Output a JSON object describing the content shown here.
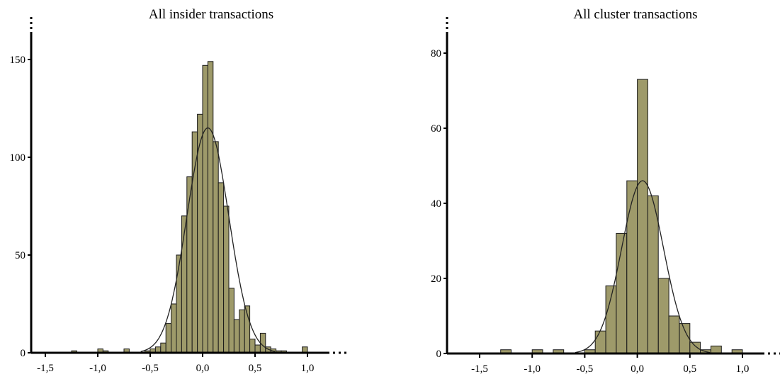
{
  "style": {
    "bar_fill": "#9e9a6a",
    "bar_stroke": "#1a1a1a",
    "axis_color": "#000000",
    "curve_color": "#222222"
  },
  "chart_data": [
    {
      "type": "bar",
      "title": "All insider transactions",
      "xlabel": "",
      "ylabel": "",
      "xlim": [
        -1.65,
        1.2
      ],
      "ylim": [
        0,
        165
      ],
      "x_ticks": [
        -1.5,
        -1.0,
        -0.5,
        0.0,
        0.5,
        1.0
      ],
      "x_tick_labels": [
        "-1,5",
        "-1,0",
        "-0,5",
        "0,0",
        "0,5",
        "1,0"
      ],
      "y_ticks": [
        0,
        50,
        100,
        150
      ],
      "y_tick_labels": [
        "0",
        "50",
        "100",
        "150"
      ],
      "bin_width": 0.05,
      "bins": [
        {
          "x0": -1.25,
          "count": 1
        },
        {
          "x0": -1.0,
          "count": 2
        },
        {
          "x0": -0.95,
          "count": 1
        },
        {
          "x0": -0.75,
          "count": 2
        },
        {
          "x0": -0.55,
          "count": 1
        },
        {
          "x0": -0.5,
          "count": 2
        },
        {
          "x0": -0.45,
          "count": 3
        },
        {
          "x0": -0.4,
          "count": 5
        },
        {
          "x0": -0.35,
          "count": 15
        },
        {
          "x0": -0.3,
          "count": 25
        },
        {
          "x0": -0.25,
          "count": 50
        },
        {
          "x0": -0.2,
          "count": 70
        },
        {
          "x0": -0.15,
          "count": 90
        },
        {
          "x0": -0.1,
          "count": 113
        },
        {
          "x0": -0.05,
          "count": 122
        },
        {
          "x0": 0.0,
          "count": 147
        },
        {
          "x0": 0.05,
          "count": 149
        },
        {
          "x0": 0.1,
          "count": 108
        },
        {
          "x0": 0.15,
          "count": 87
        },
        {
          "x0": 0.2,
          "count": 75
        },
        {
          "x0": 0.25,
          "count": 33
        },
        {
          "x0": 0.3,
          "count": 17
        },
        {
          "x0": 0.35,
          "count": 22
        },
        {
          "x0": 0.4,
          "count": 24
        },
        {
          "x0": 0.45,
          "count": 7
        },
        {
          "x0": 0.5,
          "count": 4
        },
        {
          "x0": 0.55,
          "count": 10
        },
        {
          "x0": 0.6,
          "count": 3
        },
        {
          "x0": 0.65,
          "count": 2
        },
        {
          "x0": 0.7,
          "count": 1
        },
        {
          "x0": 0.75,
          "count": 1
        },
        {
          "x0": 0.95,
          "count": 3
        }
      ],
      "normal_curve": {
        "mean": 0.05,
        "sd": 0.2,
        "peak": 115
      }
    },
    {
      "type": "bar",
      "title": "All cluster transactions",
      "xlabel": "",
      "ylabel": "",
      "xlim": [
        -1.65,
        1.2
      ],
      "ylim": [
        0,
        88
      ],
      "x_ticks": [
        -1.5,
        -1.0,
        -0.5,
        0.0,
        0.5,
        1.0
      ],
      "x_tick_labels": [
        "-1,5",
        "-1,0",
        "-0,5",
        "0,0",
        "0,5",
        "1,0"
      ],
      "y_ticks": [
        0,
        20,
        40,
        60,
        80
      ],
      "y_tick_labels": [
        "0",
        "20",
        "40",
        "60",
        "80"
      ],
      "bin_width": 0.1,
      "bins": [
        {
          "x0": -1.3,
          "count": 1
        },
        {
          "x0": -1.0,
          "count": 1
        },
        {
          "x0": -0.8,
          "count": 1
        },
        {
          "x0": -0.5,
          "count": 1
        },
        {
          "x0": -0.4,
          "count": 6
        },
        {
          "x0": -0.3,
          "count": 18
        },
        {
          "x0": -0.2,
          "count": 32
        },
        {
          "x0": -0.1,
          "count": 46
        },
        {
          "x0": 0.0,
          "count": 73
        },
        {
          "x0": 0.1,
          "count": 42
        },
        {
          "x0": 0.2,
          "count": 20
        },
        {
          "x0": 0.3,
          "count": 10
        },
        {
          "x0": 0.4,
          "count": 8
        },
        {
          "x0": 0.5,
          "count": 3
        },
        {
          "x0": 0.6,
          "count": 1
        },
        {
          "x0": 0.7,
          "count": 2
        },
        {
          "x0": 0.9,
          "count": 1
        }
      ],
      "normal_curve": {
        "mean": 0.05,
        "sd": 0.2,
        "peak": 46
      }
    }
  ]
}
